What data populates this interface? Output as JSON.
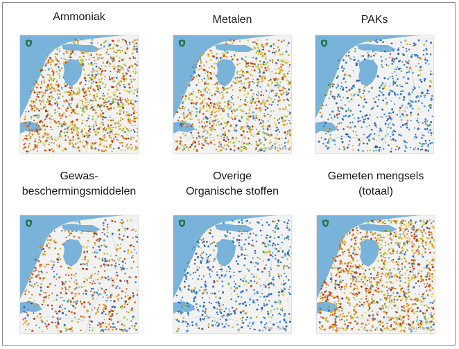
{
  "figure": {
    "panels": [
      {
        "id": "ammoniak",
        "title_lines": [
          "Ammoniak"
        ],
        "color_mix": [
          0.55,
          0.35,
          0.1
        ],
        "density": 1.0,
        "attribution": ""
      },
      {
        "id": "metalen",
        "title_lines": [
          "Metalen"
        ],
        "color_mix": [
          0.45,
          0.4,
          0.15
        ],
        "density": 0.85,
        "attribution": "ESRI · HERE"
      },
      {
        "id": "paks",
        "title_lines": [
          "PAKs"
        ],
        "color_mix": [
          0.05,
          0.1,
          0.85
        ],
        "density": 0.55,
        "attribution": ""
      },
      {
        "id": "gewas",
        "title_lines": [
          "Gewas-",
          "beschermingsmiddelen"
        ],
        "color_mix": [
          0.55,
          0.2,
          0.25
        ],
        "density": 0.55,
        "attribution": ""
      },
      {
        "id": "overige",
        "title_lines": [
          "Overige",
          "Organische stoffen"
        ],
        "color_mix": [
          0.05,
          0.15,
          0.8
        ],
        "density": 0.55,
        "attribution": "ESRI · HERE"
      },
      {
        "id": "mengsels",
        "title_lines": [
          "Gemeten mengsels",
          "(totaal)"
        ],
        "color_mix": [
          0.6,
          0.3,
          0.1
        ],
        "density": 1.0,
        "attribution": "ESRI · HERE"
      }
    ]
  },
  "map_style": {
    "water_color": "#79b3d9",
    "land_color": "#f2f2f2",
    "border_color": "#d2d2d2",
    "shield_color": "#1f6f56",
    "palette": {
      "warm": [
        "#b8340e",
        "#d4501a",
        "#e07b1f",
        "#e69a2a"
      ],
      "mid": [
        "#c9c23a",
        "#9cc64a",
        "#e2c23a"
      ],
      "cool": [
        "#2e6fc9",
        "#3b8ad6",
        "#4a9fd9",
        "#2f5fb8"
      ]
    }
  }
}
